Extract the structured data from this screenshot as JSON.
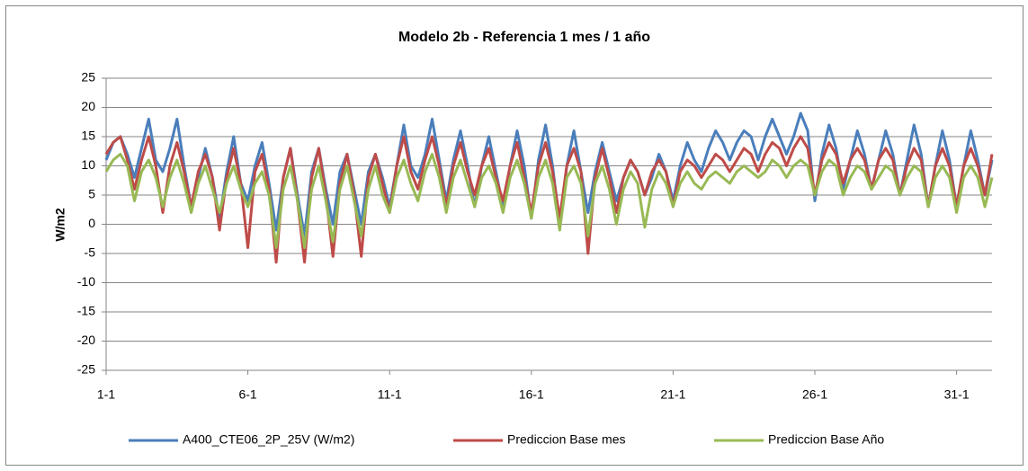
{
  "chart_data": {
    "type": "line",
    "title": "Modelo 2b - Referencia 1 mes / 1 año",
    "y_label": "W/m2",
    "categories": [
      "1-1",
      null,
      null,
      null,
      null,
      null,
      null,
      null,
      null,
      null,
      null,
      null,
      null,
      null,
      null,
      null,
      null,
      null,
      null,
      null,
      "6-1",
      null,
      null,
      null,
      null,
      null,
      null,
      null,
      null,
      null,
      null,
      null,
      null,
      null,
      null,
      null,
      null,
      null,
      null,
      null,
      "11-1",
      null,
      null,
      null,
      null,
      null,
      null,
      null,
      null,
      null,
      null,
      null,
      null,
      null,
      null,
      null,
      null,
      null,
      null,
      null,
      "16-1",
      null,
      null,
      null,
      null,
      null,
      null,
      null,
      null,
      null,
      null,
      null,
      null,
      null,
      null,
      null,
      null,
      null,
      null,
      null,
      "21-1",
      null,
      null,
      null,
      null,
      null,
      null,
      null,
      null,
      null,
      null,
      null,
      null,
      null,
      null,
      null,
      null,
      null,
      null,
      null,
      "26-1",
      null,
      null,
      null,
      null,
      null,
      null,
      null,
      null,
      null,
      null,
      null,
      null,
      null,
      null,
      null,
      null,
      null,
      null,
      null,
      "31-1",
      null,
      null,
      null,
      null,
      null
    ],
    "series": [
      {
        "name": "A400_CTE06_2P_25V (W/m2)",
        "color": "#4a7ebb",
        "values": [
          11,
          14,
          15,
          12,
          8,
          13,
          18,
          11,
          9,
          13,
          18,
          10,
          3,
          8,
          13,
          8,
          1,
          9,
          15,
          7,
          4,
          10,
          14,
          7,
          -1,
          8,
          13,
          5,
          -2,
          9,
          13,
          6,
          0,
          9,
          12,
          6,
          0,
          9,
          12,
          8,
          3,
          10,
          17,
          10,
          8,
          12,
          18,
          11,
          4,
          11,
          16,
          10,
          3,
          10,
          15,
          9,
          3,
          10,
          16,
          10,
          1,
          11,
          17,
          10,
          0,
          10,
          16,
          9,
          2,
          9,
          14,
          9,
          4,
          8,
          11,
          9,
          5,
          8,
          12,
          9,
          4,
          10,
          14,
          11,
          9,
          13,
          16,
          14,
          11,
          14,
          16,
          15,
          11,
          15,
          18,
          15,
          12,
          15,
          19,
          16,
          4,
          12,
          17,
          13,
          6,
          11,
          16,
          12,
          6,
          11,
          16,
          12,
          5,
          11,
          17,
          12,
          3,
          10,
          16,
          11,
          3,
          10,
          16,
          11,
          5,
          11
        ]
      },
      {
        "name": "Prediccion Base mes",
        "color": "#be4b48",
        "values": [
          12,
          14,
          15,
          11,
          6,
          11,
          15,
          10,
          2,
          10,
          14,
          9,
          3,
          9,
          12,
          8,
          -1,
          8,
          13,
          7,
          -4,
          9,
          12,
          6,
          -6.5,
          8,
          13,
          4,
          -6.5,
          8,
          13,
          5,
          -5.5,
          7,
          12,
          5,
          -5.5,
          8,
          12,
          7,
          2,
          10,
          15,
          9,
          6,
          11,
          15,
          10,
          3,
          10,
          14,
          9,
          5,
          10,
          13,
          8,
          4,
          10,
          14,
          8,
          2,
          10,
          14,
          9,
          1,
          10,
          13,
          9,
          -5,
          8,
          13,
          8,
          2,
          8,
          11,
          9,
          5,
          9,
          11,
          9,
          3,
          9,
          11,
          10,
          8,
          10,
          12,
          11,
          9,
          11,
          13,
          12,
          9,
          12,
          14,
          13,
          10,
          13,
          15,
          13,
          5,
          11,
          14,
          12,
          7,
          11,
          13,
          11,
          6,
          11,
          13,
          11,
          5,
          10,
          13,
          11,
          3,
          10,
          13,
          10,
          3,
          10,
          13,
          10,
          5,
          12
        ]
      },
      {
        "name": "Prediccion Base Año",
        "color": "#98b954",
        "values": [
          9,
          11,
          12,
          10,
          4,
          9,
          11,
          8,
          3,
          8,
          11,
          7,
          2,
          7,
          10,
          6,
          2,
          7,
          10,
          6,
          3,
          7,
          9,
          5,
          -4,
          6,
          10,
          4,
          -4,
          6,
          10,
          4,
          -3,
          6,
          10,
          4,
          -2,
          6,
          10,
          5,
          2,
          8,
          11,
          7,
          4,
          9,
          12,
          8,
          2,
          8,
          11,
          7,
          3,
          8,
          10,
          7,
          2,
          8,
          11,
          7,
          1,
          8,
          11,
          7,
          -1,
          8,
          10,
          7,
          -2,
          7,
          10,
          6,
          0,
          6,
          9,
          7,
          -0.5,
          6,
          9,
          7,
          3,
          7,
          9,
          7,
          6,
          8,
          9,
          8,
          7,
          9,
          10,
          9,
          8,
          9,
          11,
          10,
          8,
          10,
          11,
          10,
          5,
          9,
          11,
          10,
          5,
          8,
          10,
          9,
          6,
          8,
          10,
          9,
          5,
          8,
          10,
          9,
          3,
          8,
          10,
          8,
          2,
          8,
          10,
          8,
          3,
          8
        ]
      }
    ],
    "ylim": [
      -25,
      25
    ],
    "yticks": [
      -25,
      -20,
      -15,
      -10,
      -5,
      0,
      5,
      10,
      15,
      20,
      25
    ],
    "grid": true
  }
}
